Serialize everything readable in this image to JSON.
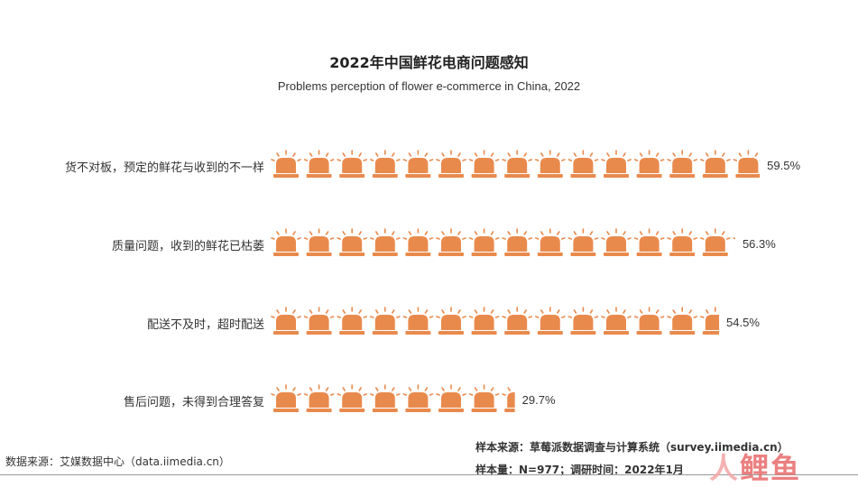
{
  "chart_data": {
    "type": "bar",
    "title": "2022年中国鲜花电商问题感知",
    "subtitle": "Problems perception of flower e-commerce in China, 2022",
    "categories": [
      "货不对板，预定的鲜花与收到的不一样",
      "质量问题，收到的鲜花已枯萎",
      "配送不及时，超时配送",
      "售后问题，未得到合理答复"
    ],
    "values": [
      59.5,
      56.3,
      54.5,
      29.7
    ],
    "value_labels": [
      "59.5%",
      "56.3%",
      "54.5%",
      "29.7%"
    ],
    "unit": "%",
    "icon": "alarm-siren-icon",
    "icon_color": "#e98a4d",
    "icon_value": 4
  },
  "footer": {
    "source": "数据来源：艾媒数据中心（data.iimedia.cn）",
    "sample_source": "样本来源：草莓派数据调查与计算系统（survey.iimedia.cn）",
    "sample_size": "样本量：N=977；调研时间：2022年1月"
  },
  "logo": {
    "text_a": "人",
    "text_b": "鲤鱼"
  }
}
